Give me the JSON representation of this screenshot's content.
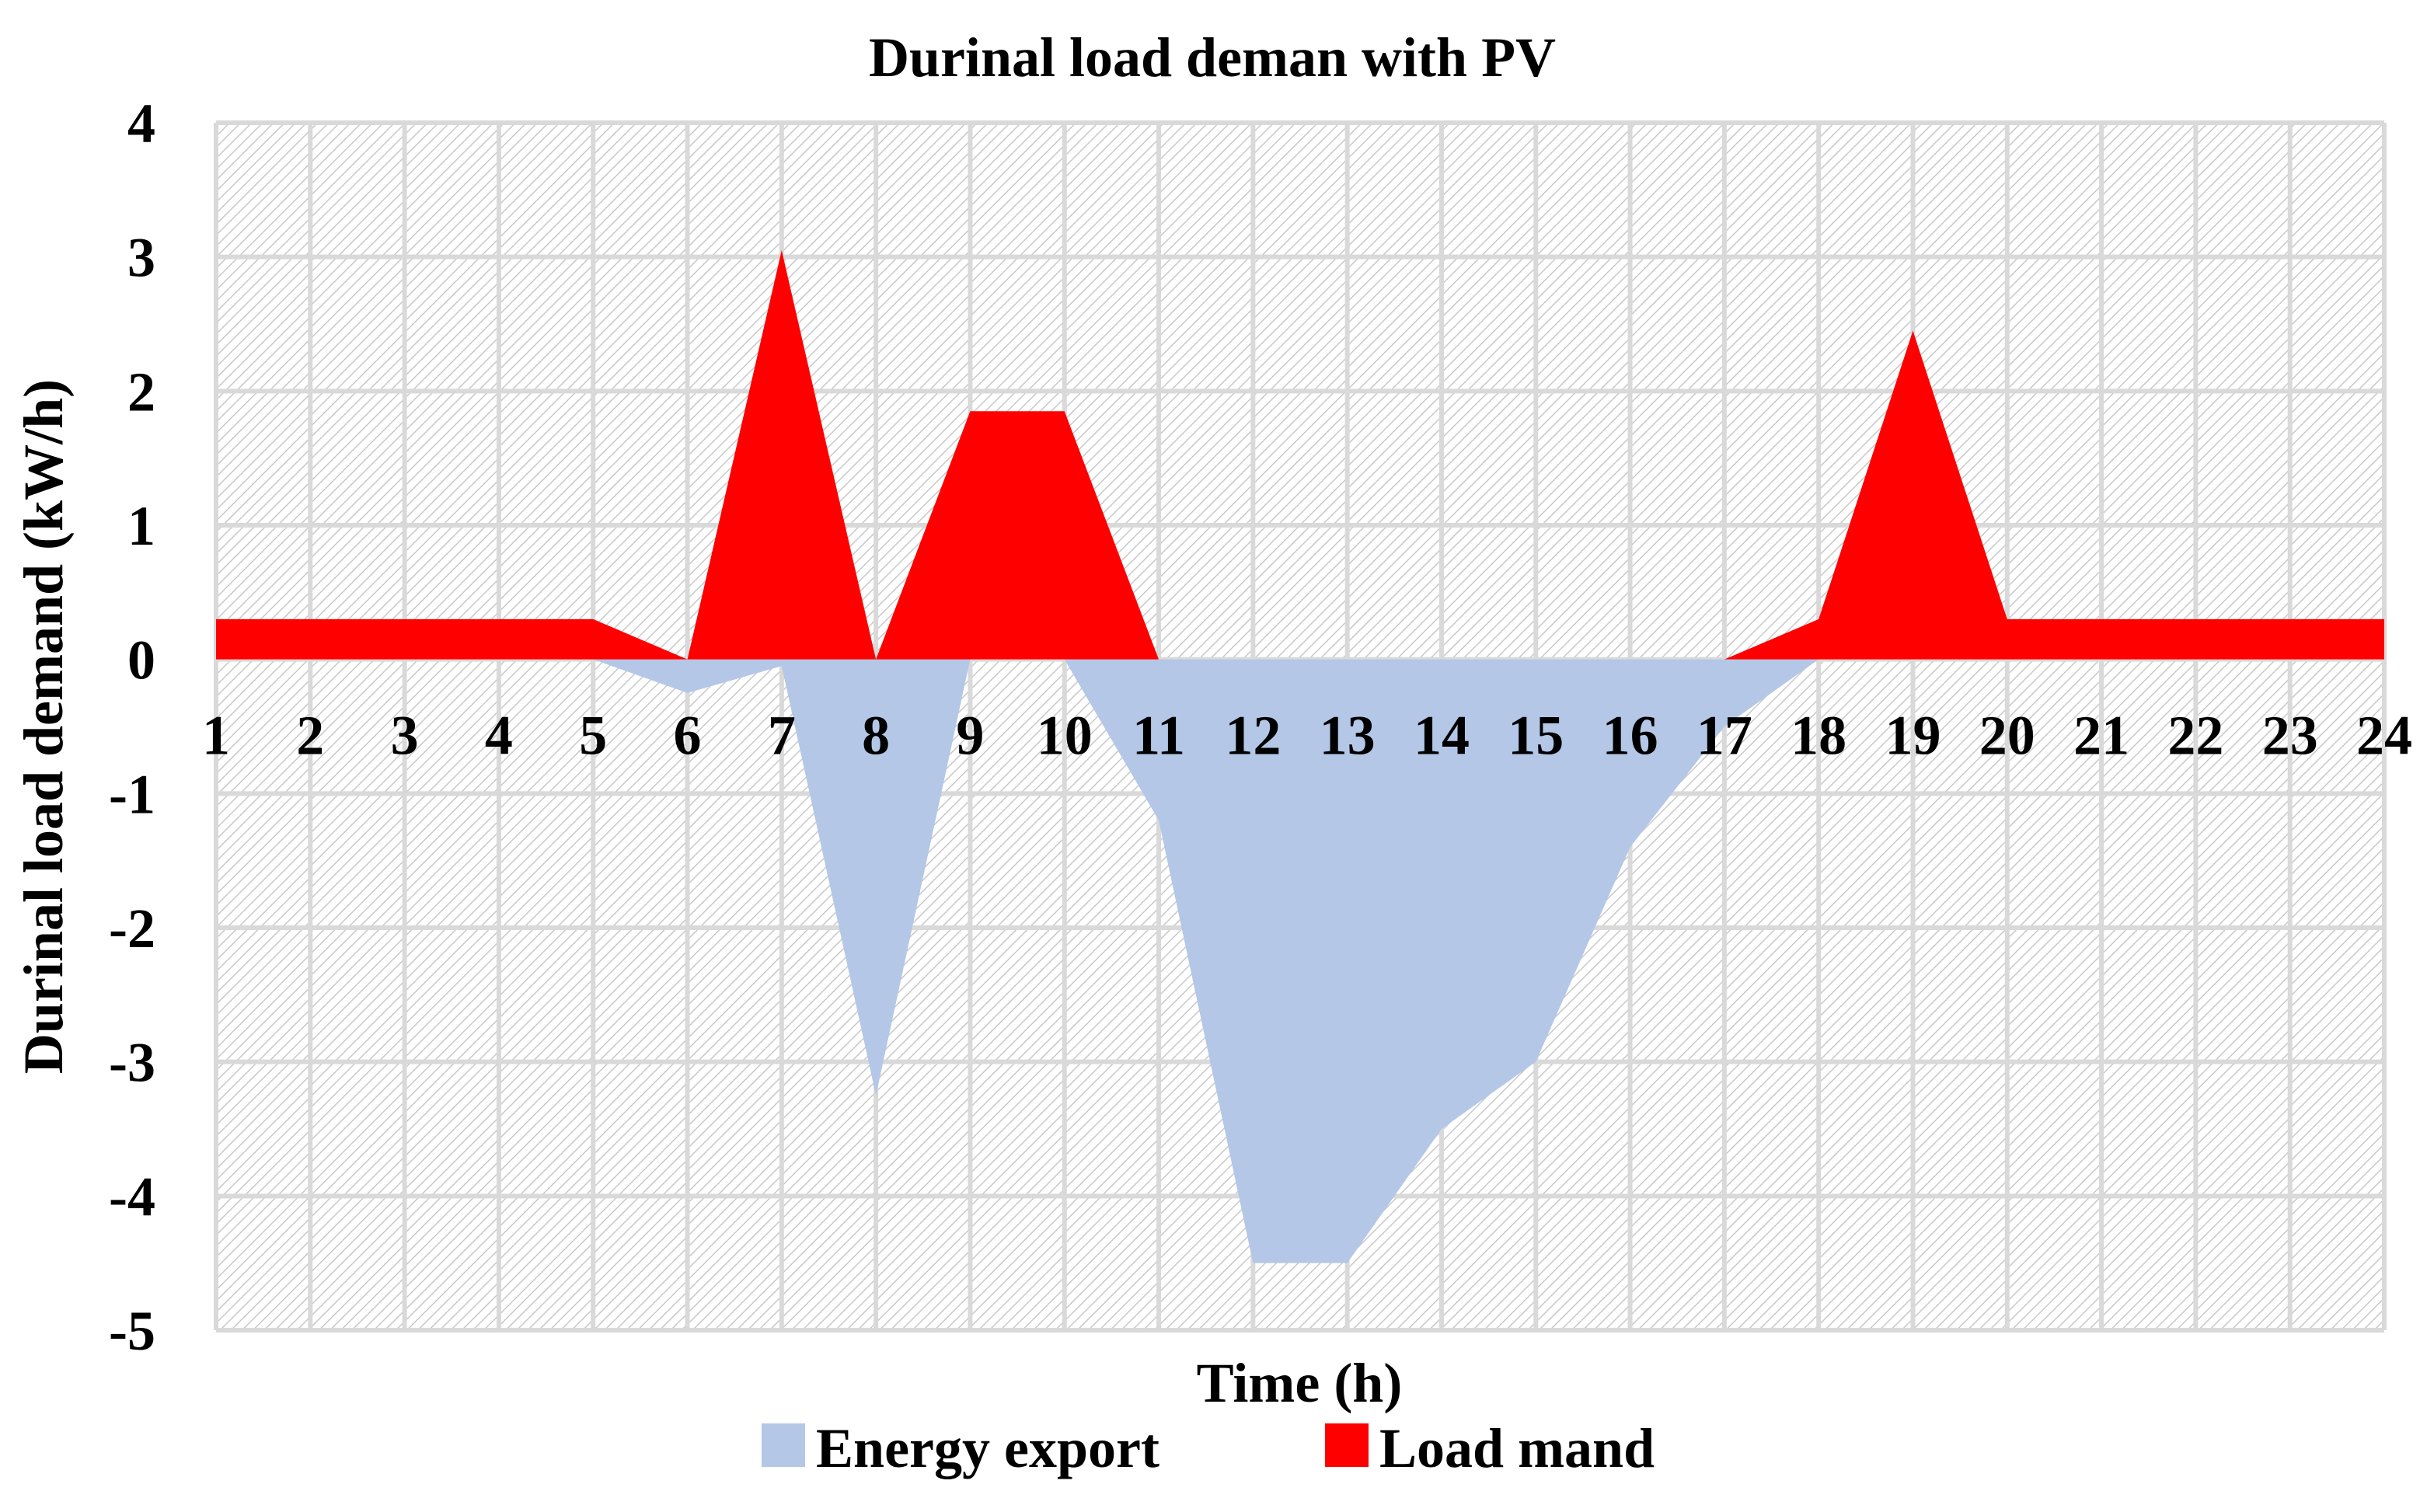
{
  "chart_data": {
    "type": "area",
    "title": "Durinal load deman with PV",
    "xlabel": "Time (h)",
    "ylabel": "Durinal load demand (kW/h)",
    "x": [
      1,
      2,
      3,
      4,
      5,
      6,
      7,
      8,
      9,
      10,
      11,
      12,
      13,
      14,
      15,
      16,
      17,
      18,
      19,
      20,
      21,
      22,
      23,
      24
    ],
    "ylim": [
      -5,
      4
    ],
    "yticks": [
      4,
      3,
      2,
      1,
      0,
      -1,
      -2,
      -3,
      -4,
      -5
    ],
    "grid": true,
    "legend_position": "bottom",
    "series": [
      {
        "name": "Energy export",
        "color": "#b4c7e7",
        "values": [
          0,
          0,
          0,
          0,
          0,
          -0.25,
          -0.05,
          -3.25,
          0,
          0,
          -1.2,
          -4.5,
          -4.5,
          -3.5,
          -3.0,
          -1.4,
          -0.5,
          0,
          0,
          0,
          0,
          0,
          0,
          0
        ]
      },
      {
        "name": "Load mand",
        "color": "#ff0000",
        "values": [
          0.3,
          0.3,
          0.3,
          0.3,
          0.3,
          0,
          3.05,
          0,
          1.85,
          1.85,
          0,
          0,
          0,
          0,
          0,
          0,
          0,
          0.3,
          2.45,
          0.3,
          0.3,
          0.3,
          0.3,
          0.3
        ]
      }
    ]
  }
}
